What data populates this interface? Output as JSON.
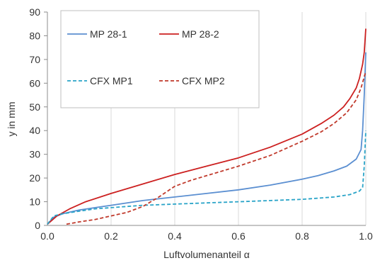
{
  "chart_data": {
    "type": "line",
    "title": "",
    "xlabel": "Luftvolumenanteil α",
    "ylabel": "y in mm",
    "xlim": [
      0.0,
      1.0
    ],
    "ylim": [
      0,
      90
    ],
    "xticks": [
      "0.0",
      "0.2",
      "0.4",
      "0.6",
      "0.8",
      "1.0"
    ],
    "yticks": [
      "0",
      "10",
      "20",
      "30",
      "40",
      "50",
      "60",
      "70",
      "80",
      "90"
    ],
    "grid": "vertical",
    "legend": "top-left inside plot",
    "series": [
      {
        "name": "MP 28-1",
        "color": "#5b8fd1",
        "style": "solid",
        "x": [
          0.0,
          0.02,
          0.05,
          0.1,
          0.15,
          0.2,
          0.3,
          0.4,
          0.5,
          0.6,
          0.7,
          0.8,
          0.85,
          0.9,
          0.94,
          0.97,
          0.985,
          0.99,
          0.995,
          1.0
        ],
        "y": [
          0.5,
          3.5,
          5,
          6.5,
          7.5,
          8.5,
          10.5,
          12,
          13.5,
          15,
          17,
          19.5,
          21,
          23,
          25,
          28,
          32,
          40,
          55,
          73
        ]
      },
      {
        "name": "MP 28-2",
        "color": "#cc2020",
        "style": "solid",
        "x": [
          0.0,
          0.03,
          0.07,
          0.12,
          0.2,
          0.3,
          0.4,
          0.5,
          0.6,
          0.7,
          0.8,
          0.86,
          0.9,
          0.93,
          0.95,
          0.97,
          0.98,
          0.99,
          0.995,
          1.0
        ],
        "y": [
          0.5,
          4,
          7,
          10,
          13.5,
          17.5,
          21.5,
          25,
          28.5,
          33,
          38.5,
          43,
          46.5,
          50,
          53.5,
          58,
          62,
          68,
          73,
          83
        ]
      },
      {
        "name": "CFX MP1",
        "color": "#2aa4c8",
        "style": "dashed",
        "x": [
          0.0,
          0.02,
          0.05,
          0.1,
          0.15,
          0.2,
          0.3,
          0.4,
          0.5,
          0.6,
          0.7,
          0.8,
          0.9,
          0.95,
          0.98,
          0.99,
          0.995,
          1.0
        ],
        "y": [
          0.5,
          4,
          5,
          6,
          7,
          7.5,
          8.5,
          9,
          9.5,
          10,
          10.5,
          11,
          12,
          13,
          14.5,
          16,
          25,
          40
        ]
      },
      {
        "name": "CFX MP2",
        "color": "#c0392b",
        "style": "dashed",
        "x": [
          0.06,
          0.1,
          0.15,
          0.2,
          0.25,
          0.3,
          0.35,
          0.4,
          0.45,
          0.5,
          0.6,
          0.7,
          0.8,
          0.86,
          0.9,
          0.94,
          0.97,
          0.985,
          1.0
        ],
        "y": [
          0.5,
          1.5,
          2.5,
          4,
          5.5,
          8,
          12,
          16.5,
          19,
          21,
          25,
          29.5,
          35.5,
          39.5,
          43,
          47.5,
          53,
          58,
          65
        ]
      }
    ]
  }
}
